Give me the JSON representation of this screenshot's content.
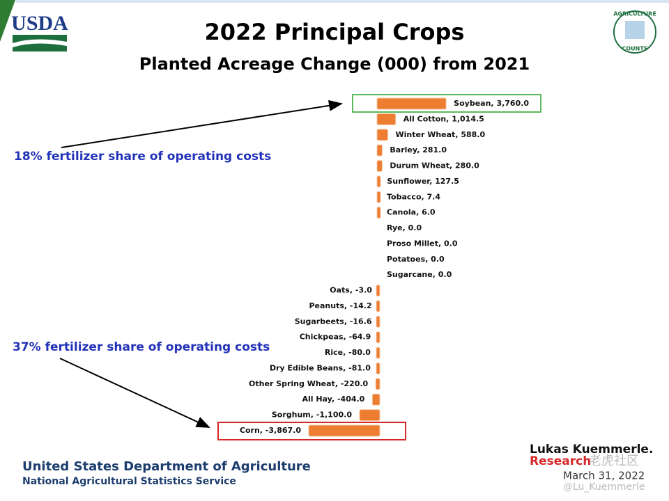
{
  "page": {
    "usda_logo": "USDA",
    "badge_top": "AGRICULTURE",
    "badge_bottom": "COUNTS",
    "annotation_top": "18% fertilizer share of operating costs",
    "annotation_bottom": "37% fertilizer share of operating costs",
    "footer_line1": "United States Department of Agriculture",
    "footer_line2": "National Agricultural Statistics Service",
    "author_name": "Lukas Kuemmerle.",
    "author_sub": "Research",
    "watermark": "老虎社区",
    "date": "March 31, 2022",
    "handle": "@Lu_Kuemmerle"
  },
  "chart_data": {
    "type": "bar",
    "orientation": "horizontal",
    "title": "2022 Principal Crops",
    "subtitle": "Planted Acreage Change (000) from 2021",
    "color": "#ed7d31",
    "label_separator": ", ",
    "categories": [
      "Soybean",
      "All Cotton",
      "Winter Wheat",
      "Barley",
      "Durum Wheat",
      "Sunflower",
      "Tobacco",
      "Canola",
      "Rye",
      "Proso Millet",
      "Potatoes",
      "Sugarcane",
      "Oats",
      "Peanuts",
      "Sugarbeets",
      "Chickpeas",
      "Rice",
      "Dry Edible Beans",
      "Other Spring Wheat",
      "All Hay",
      "Sorghum",
      "Corn"
    ],
    "values": [
      3760.0,
      1014.5,
      588.0,
      281.0,
      280.0,
      127.5,
      7.4,
      6.0,
      0.0,
      0.0,
      0.0,
      0.0,
      -3.0,
      -14.2,
      -16.6,
      -64.9,
      -80.0,
      -81.0,
      -220.0,
      -404.0,
      -1100.0,
      -3867.0
    ],
    "value_labels": [
      "3,760.0",
      "1,014.5",
      "588.0",
      "281.0",
      "280.0",
      "127.5",
      "7.4",
      "6.0",
      "0.0",
      "0.0",
      "0.0",
      "0.0",
      "-3.0",
      "-14.2",
      "-16.6",
      "-64.9",
      "-80.0",
      "-81.0",
      "-220.0",
      "-404.0",
      "-1,100.0",
      "-3,867.0"
    ]
  }
}
